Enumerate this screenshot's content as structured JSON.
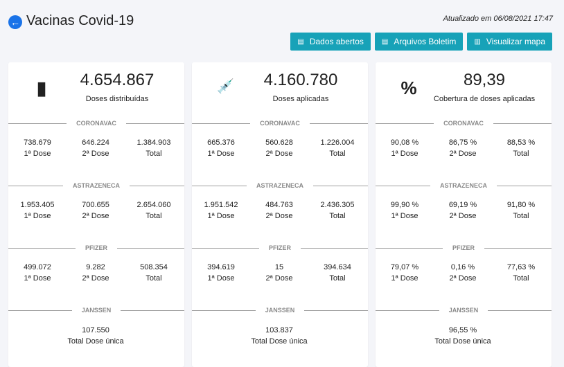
{
  "header": {
    "title": "Vacinas Covid-19",
    "back_icon": "arrow-left-circle-icon",
    "updated": "Atualizado em 06/08/2021 17:47"
  },
  "buttons": [
    {
      "label": "Dados abertos",
      "icon": "excel-file-icon"
    },
    {
      "label": "Arquivos Boletim",
      "icon": "excel-file-icon"
    },
    {
      "label": "Visualizar mapa",
      "icon": "map-icon"
    }
  ],
  "accent": "#17a2b8",
  "cards": [
    {
      "icon": "vial-icon",
      "icon_glyph": "▮",
      "value": "4.654.867",
      "label": "Doses distribuídas",
      "sections": [
        {
          "name": "CORONAVAC",
          "values": [
            "738.679",
            "646.224",
            "1.384.903"
          ]
        },
        {
          "name": "ASTRAZENECA",
          "values": [
            "1.953.405",
            "700.655",
            "2.654.060"
          ]
        },
        {
          "name": "PFIZER",
          "values": [
            "499.072",
            "9.282",
            "508.354"
          ]
        }
      ],
      "janssen": {
        "name": "JANSSEN",
        "value": "107.550",
        "label": "Total Dose única"
      }
    },
    {
      "icon": "syringe-icon",
      "icon_glyph": "💉",
      "value": "4.160.780",
      "label": "Doses aplicadas",
      "sections": [
        {
          "name": "CORONAVAC",
          "values": [
            "665.376",
            "560.628",
            "1.226.004"
          ]
        },
        {
          "name": "ASTRAZENECA",
          "values": [
            "1.951.542",
            "484.763",
            "2.436.305"
          ]
        },
        {
          "name": "PFIZER",
          "values": [
            "394.619",
            "15",
            "394.634"
          ]
        }
      ],
      "janssen": {
        "name": "JANSSEN",
        "value": "103.837",
        "label": "Total Dose única"
      }
    },
    {
      "icon": "percent-icon",
      "icon_glyph": "%",
      "value": "89,39",
      "label": "Cobertura de doses aplicadas",
      "sections": [
        {
          "name": "CORONAVAC",
          "values": [
            "90,08 %",
            "86,75 %",
            "88,53 %"
          ]
        },
        {
          "name": "ASTRAZENECA",
          "values": [
            "99,90 %",
            "69,19 %",
            "91,80 %"
          ]
        },
        {
          "name": "PFIZER",
          "values": [
            "79,07 %",
            "0,16 %",
            "77,63 %"
          ]
        }
      ],
      "janssen": {
        "name": "JANSSEN",
        "value": "96,55 %",
        "label": "Total Dose única"
      }
    }
  ],
  "dose_labels": [
    "1ª Dose",
    "2ª Dose",
    "Total"
  ]
}
